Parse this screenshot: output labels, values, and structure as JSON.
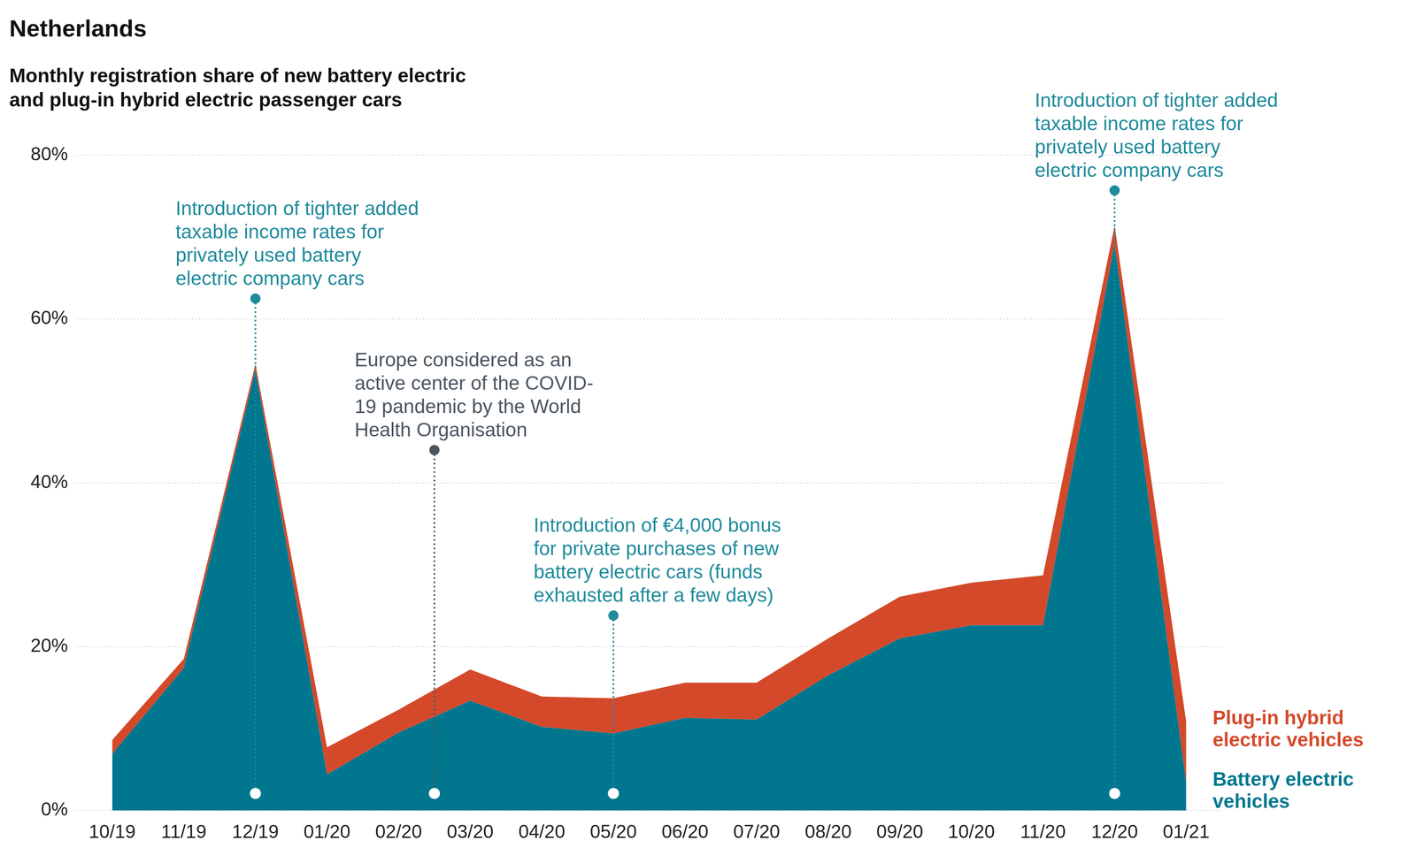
{
  "chart_data": {
    "type": "area",
    "title": "Netherlands",
    "subtitle": [
      "Monthly registration share of new battery electric",
      "and plug-in hybrid electric passenger cars"
    ],
    "categories": [
      "10/19",
      "11/19",
      "12/19",
      "01/20",
      "02/20",
      "03/20",
      "04/20",
      "05/20",
      "06/20",
      "07/20",
      "08/20",
      "09/20",
      "10/20",
      "11/20",
      "12/20",
      "01/21"
    ],
    "series": [
      {
        "name": "Battery electric vehicles",
        "color": "#00778f",
        "values": [
          6.9,
          17.4,
          53.8,
          4.4,
          9.5,
          13.4,
          10.2,
          9.4,
          11.3,
          11.1,
          16.5,
          21.0,
          22.6,
          22.6,
          69.2,
          3.3
        ]
      },
      {
        "name": "Plug-in hybrid electric vehicles",
        "color": "#d4492a",
        "values": [
          1.7,
          1.1,
          0.7,
          3.3,
          2.8,
          3.8,
          3.7,
          4.3,
          4.3,
          4.5,
          4.5,
          5.1,
          5.2,
          6.1,
          2.2,
          7.5
        ]
      }
    ],
    "stacked": true,
    "ylim": [
      0,
      80
    ],
    "yticks": [
      {
        "value": 0,
        "label": "0%"
      },
      {
        "value": 20,
        "label": "20%"
      },
      {
        "value": 40,
        "label": "40%"
      },
      {
        "value": 60,
        "label": "60%"
      },
      {
        "value": 80,
        "label": "80%"
      }
    ],
    "grid": true,
    "legend": "right",
    "annotations": [
      {
        "text": [
          "Introduction of tighter added",
          "taxable income rates for",
          "privately used battery",
          "electric company cars"
        ],
        "category": "12/19",
        "y": 62.5,
        "color": "#1f8a9b"
      },
      {
        "text": [
          "Europe considered as an",
          "active center of the COVID-",
          "19 pandemic by the World",
          "Health Organisation"
        ],
        "category": [
          "02/20",
          "03/20"
        ],
        "y": 44,
        "color": "#4a5560"
      },
      {
        "text": [
          "Introduction of €4,000 bonus",
          "for private purchases of new",
          "battery electric cars (funds",
          "exhausted after a few days)"
        ],
        "category": "05/20",
        "y": 23.8,
        "color": "#1f8a9b"
      },
      {
        "text": [
          "Introduction of tighter added",
          "taxable income rates for",
          "privately used battery",
          "electric company cars"
        ],
        "category": "12/20",
        "y": 75.7,
        "color": "#1f8a9b"
      }
    ]
  }
}
